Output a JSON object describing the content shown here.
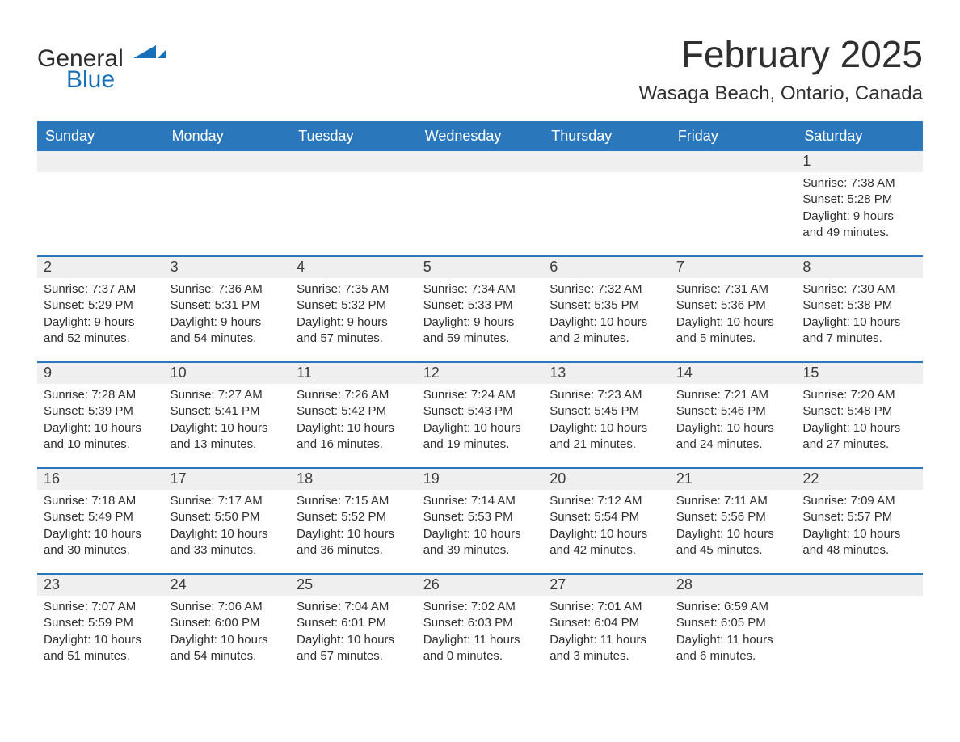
{
  "logo": {
    "word1": "General",
    "word2": "Blue"
  },
  "title": "February 2025",
  "location": "Wasaga Beach, Ontario, Canada",
  "colors": {
    "header_bg": "#2a78bb",
    "header_text": "#ffffff",
    "daynum_bg": "#efefef",
    "text": "#2f2f2f",
    "rule": "#2a78bb",
    "logo_blue": "#1870b8"
  },
  "days_of_week": [
    "Sunday",
    "Monday",
    "Tuesday",
    "Wednesday",
    "Thursday",
    "Friday",
    "Saturday"
  ],
  "weeks": [
    [
      null,
      null,
      null,
      null,
      null,
      null,
      {
        "n": "1",
        "sunrise": "Sunrise: 7:38 AM",
        "sunset": "Sunset: 5:28 PM",
        "daylight": "Daylight: 9 hours and 49 minutes."
      }
    ],
    [
      {
        "n": "2",
        "sunrise": "Sunrise: 7:37 AM",
        "sunset": "Sunset: 5:29 PM",
        "daylight": "Daylight: 9 hours and 52 minutes."
      },
      {
        "n": "3",
        "sunrise": "Sunrise: 7:36 AM",
        "sunset": "Sunset: 5:31 PM",
        "daylight": "Daylight: 9 hours and 54 minutes."
      },
      {
        "n": "4",
        "sunrise": "Sunrise: 7:35 AM",
        "sunset": "Sunset: 5:32 PM",
        "daylight": "Daylight: 9 hours and 57 minutes."
      },
      {
        "n": "5",
        "sunrise": "Sunrise: 7:34 AM",
        "sunset": "Sunset: 5:33 PM",
        "daylight": "Daylight: 9 hours and 59 minutes."
      },
      {
        "n": "6",
        "sunrise": "Sunrise: 7:32 AM",
        "sunset": "Sunset: 5:35 PM",
        "daylight": "Daylight: 10 hours and 2 minutes."
      },
      {
        "n": "7",
        "sunrise": "Sunrise: 7:31 AM",
        "sunset": "Sunset: 5:36 PM",
        "daylight": "Daylight: 10 hours and 5 minutes."
      },
      {
        "n": "8",
        "sunrise": "Sunrise: 7:30 AM",
        "sunset": "Sunset: 5:38 PM",
        "daylight": "Daylight: 10 hours and 7 minutes."
      }
    ],
    [
      {
        "n": "9",
        "sunrise": "Sunrise: 7:28 AM",
        "sunset": "Sunset: 5:39 PM",
        "daylight": "Daylight: 10 hours and 10 minutes."
      },
      {
        "n": "10",
        "sunrise": "Sunrise: 7:27 AM",
        "sunset": "Sunset: 5:41 PM",
        "daylight": "Daylight: 10 hours and 13 minutes."
      },
      {
        "n": "11",
        "sunrise": "Sunrise: 7:26 AM",
        "sunset": "Sunset: 5:42 PM",
        "daylight": "Daylight: 10 hours and 16 minutes."
      },
      {
        "n": "12",
        "sunrise": "Sunrise: 7:24 AM",
        "sunset": "Sunset: 5:43 PM",
        "daylight": "Daylight: 10 hours and 19 minutes."
      },
      {
        "n": "13",
        "sunrise": "Sunrise: 7:23 AM",
        "sunset": "Sunset: 5:45 PM",
        "daylight": "Daylight: 10 hours and 21 minutes."
      },
      {
        "n": "14",
        "sunrise": "Sunrise: 7:21 AM",
        "sunset": "Sunset: 5:46 PM",
        "daylight": "Daylight: 10 hours and 24 minutes."
      },
      {
        "n": "15",
        "sunrise": "Sunrise: 7:20 AM",
        "sunset": "Sunset: 5:48 PM",
        "daylight": "Daylight: 10 hours and 27 minutes."
      }
    ],
    [
      {
        "n": "16",
        "sunrise": "Sunrise: 7:18 AM",
        "sunset": "Sunset: 5:49 PM",
        "daylight": "Daylight: 10 hours and 30 minutes."
      },
      {
        "n": "17",
        "sunrise": "Sunrise: 7:17 AM",
        "sunset": "Sunset: 5:50 PM",
        "daylight": "Daylight: 10 hours and 33 minutes."
      },
      {
        "n": "18",
        "sunrise": "Sunrise: 7:15 AM",
        "sunset": "Sunset: 5:52 PM",
        "daylight": "Daylight: 10 hours and 36 minutes."
      },
      {
        "n": "19",
        "sunrise": "Sunrise: 7:14 AM",
        "sunset": "Sunset: 5:53 PM",
        "daylight": "Daylight: 10 hours and 39 minutes."
      },
      {
        "n": "20",
        "sunrise": "Sunrise: 7:12 AM",
        "sunset": "Sunset: 5:54 PM",
        "daylight": "Daylight: 10 hours and 42 minutes."
      },
      {
        "n": "21",
        "sunrise": "Sunrise: 7:11 AM",
        "sunset": "Sunset: 5:56 PM",
        "daylight": "Daylight: 10 hours and 45 minutes."
      },
      {
        "n": "22",
        "sunrise": "Sunrise: 7:09 AM",
        "sunset": "Sunset: 5:57 PM",
        "daylight": "Daylight: 10 hours and 48 minutes."
      }
    ],
    [
      {
        "n": "23",
        "sunrise": "Sunrise: 7:07 AM",
        "sunset": "Sunset: 5:59 PM",
        "daylight": "Daylight: 10 hours and 51 minutes."
      },
      {
        "n": "24",
        "sunrise": "Sunrise: 7:06 AM",
        "sunset": "Sunset: 6:00 PM",
        "daylight": "Daylight: 10 hours and 54 minutes."
      },
      {
        "n": "25",
        "sunrise": "Sunrise: 7:04 AM",
        "sunset": "Sunset: 6:01 PM",
        "daylight": "Daylight: 10 hours and 57 minutes."
      },
      {
        "n": "26",
        "sunrise": "Sunrise: 7:02 AM",
        "sunset": "Sunset: 6:03 PM",
        "daylight": "Daylight: 11 hours and 0 minutes."
      },
      {
        "n": "27",
        "sunrise": "Sunrise: 7:01 AM",
        "sunset": "Sunset: 6:04 PM",
        "daylight": "Daylight: 11 hours and 3 minutes."
      },
      {
        "n": "28",
        "sunrise": "Sunrise: 6:59 AM",
        "sunset": "Sunset: 6:05 PM",
        "daylight": "Daylight: 11 hours and 6 minutes."
      },
      null
    ]
  ]
}
